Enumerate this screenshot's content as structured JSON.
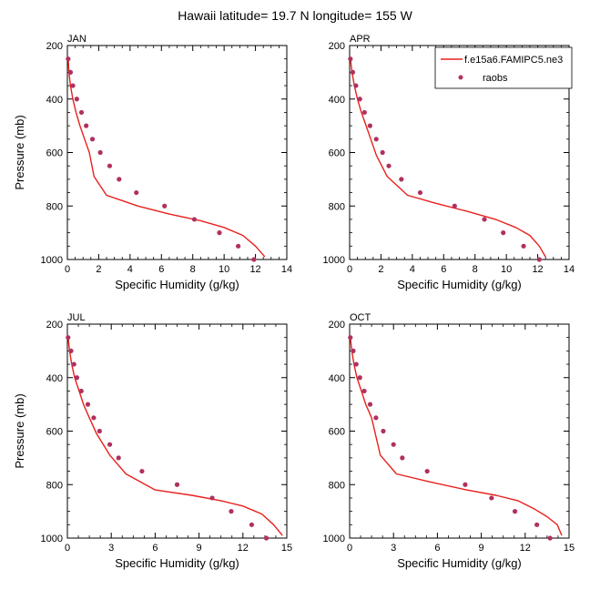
{
  "title": "Hawaii  latitude= 19.7 N longitude= 155 W",
  "legend": {
    "model_label": "f.e15a6.FAMIPC5.ne3",
    "obs_label": "raobs",
    "model_color": "#e8201c",
    "obs_color": "#b03060"
  },
  "chart_data": [
    {
      "type": "line",
      "panel_label": "JAN",
      "xlabel": "Specific Humidity (g/kg)",
      "ylabel": "Pressure (mb)",
      "xlim": [
        0,
        14
      ],
      "ylim": [
        200,
        1000
      ],
      "y_reversed": true,
      "xticks": [
        0,
        2,
        4,
        6,
        8,
        10,
        12,
        14
      ],
      "yticks": [
        200,
        400,
        600,
        800,
        1000
      ],
      "model": {
        "x": [
          0.05,
          0.1,
          0.2,
          0.35,
          0.55,
          0.8,
          1.1,
          1.4,
          1.7,
          2.5,
          4.5,
          6.5,
          8.5,
          10.0,
          11.2,
          12.0,
          12.6
        ],
        "y": [
          250,
          300,
          350,
          400,
          450,
          500,
          550,
          600,
          690,
          760,
          800,
          830,
          855,
          880,
          910,
          950,
          990
        ]
      },
      "obs": {
        "x": [
          0.05,
          0.2,
          0.35,
          0.6,
          0.9,
          1.2,
          1.6,
          2.1,
          2.7,
          3.3,
          4.4,
          6.2,
          8.1,
          9.7,
          10.9,
          11.9
        ],
        "y": [
          250,
          300,
          350,
          400,
          450,
          500,
          550,
          600,
          650,
          700,
          750,
          800,
          850,
          900,
          950,
          1000
        ]
      }
    },
    {
      "type": "line",
      "panel_label": "APR",
      "xlabel": "Specific Humidity (g/kg)",
      "ylabel": "",
      "xlim": [
        0,
        14
      ],
      "ylim": [
        200,
        1000
      ],
      "y_reversed": true,
      "xticks": [
        0,
        2,
        4,
        6,
        8,
        10,
        12,
        14
      ],
      "yticks": [
        200,
        400,
        600,
        800,
        1000
      ],
      "model": {
        "x": [
          0.05,
          0.15,
          0.3,
          0.5,
          0.75,
          1.05,
          1.35,
          1.7,
          2.4,
          3.7,
          5.5,
          7.5,
          9.3,
          10.6,
          11.5,
          12.1,
          12.5
        ],
        "y": [
          250,
          300,
          350,
          400,
          450,
          500,
          550,
          610,
          690,
          760,
          790,
          820,
          850,
          880,
          910,
          950,
          990
        ]
      },
      "obs": {
        "x": [
          0.05,
          0.2,
          0.4,
          0.65,
          0.95,
          1.3,
          1.7,
          2.1,
          2.5,
          3.3,
          4.5,
          6.7,
          8.6,
          9.8,
          11.1,
          12.1
        ],
        "y": [
          250,
          300,
          350,
          400,
          450,
          500,
          550,
          600,
          650,
          700,
          750,
          800,
          850,
          900,
          950,
          1000
        ]
      }
    },
    {
      "type": "line",
      "panel_label": "JUL",
      "xlabel": "Specific Humidity (g/kg)",
      "ylabel": "Pressure (mb)",
      "xlim": [
        0,
        15
      ],
      "ylim": [
        200,
        1000
      ],
      "y_reversed": true,
      "xticks": [
        0,
        3,
        6,
        9,
        12,
        15
      ],
      "yticks": [
        200,
        400,
        600,
        800,
        1000
      ],
      "model": {
        "x": [
          0.05,
          0.15,
          0.3,
          0.5,
          0.8,
          1.1,
          1.5,
          2.0,
          2.9,
          4.0,
          6.0,
          8.5,
          10.5,
          12.0,
          13.3,
          14.1,
          14.7
        ],
        "y": [
          250,
          300,
          350,
          400,
          450,
          500,
          550,
          610,
          690,
          760,
          820,
          840,
          860,
          880,
          910,
          950,
          990
        ]
      },
      "obs": {
        "x": [
          0.05,
          0.25,
          0.45,
          0.65,
          0.95,
          1.4,
          1.8,
          2.2,
          2.9,
          3.5,
          5.1,
          7.5,
          9.9,
          11.2,
          12.6,
          13.6
        ],
        "y": [
          250,
          300,
          350,
          400,
          450,
          500,
          550,
          600,
          650,
          700,
          750,
          800,
          850,
          900,
          950,
          1000
        ]
      }
    },
    {
      "type": "line",
      "panel_label": "OCT",
      "xlabel": "Specific Humidity (g/kg)",
      "ylabel": "",
      "xlim": [
        0,
        15
      ],
      "ylim": [
        200,
        1000
      ],
      "y_reversed": true,
      "xticks": [
        0,
        3,
        6,
        9,
        12,
        15
      ],
      "yticks": [
        200,
        400,
        600,
        800,
        1000
      ],
      "model": {
        "x": [
          0.05,
          0.15,
          0.3,
          0.5,
          0.8,
          1.1,
          1.5,
          2.1,
          3.2,
          5.5,
          8.0,
          10.0,
          11.5,
          12.6,
          13.5,
          14.2,
          14.5
        ],
        "y": [
          250,
          300,
          350,
          400,
          450,
          500,
          550,
          690,
          760,
          790,
          820,
          840,
          860,
          890,
          920,
          950,
          990
        ]
      },
      "obs": {
        "x": [
          0.05,
          0.25,
          0.45,
          0.7,
          1.0,
          1.4,
          1.8,
          2.3,
          3.0,
          3.6,
          5.3,
          7.9,
          9.7,
          11.3,
          12.8,
          13.7
        ],
        "y": [
          250,
          300,
          350,
          400,
          450,
          500,
          550,
          600,
          650,
          700,
          750,
          800,
          850,
          900,
          950,
          1000
        ]
      }
    }
  ]
}
